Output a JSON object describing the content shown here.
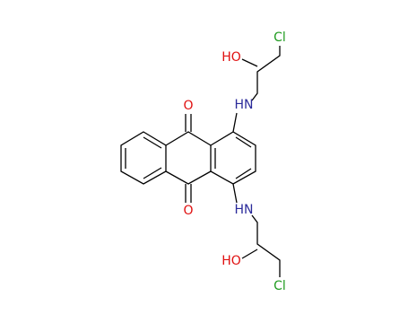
{
  "atoms": [
    "Cl",
    "HO",
    "HN",
    "O",
    "O",
    "HN",
    "HO",
    "Cl"
  ]
}
